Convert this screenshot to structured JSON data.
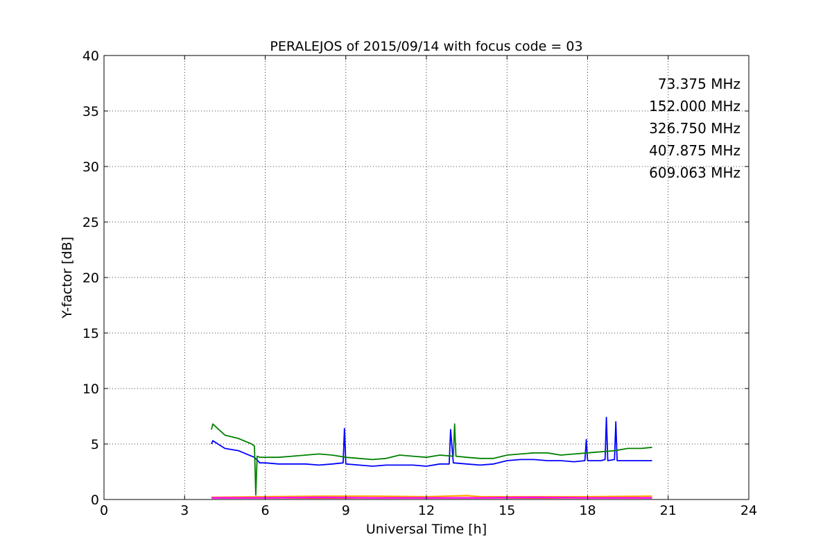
{
  "chart_data": {
    "type": "line",
    "title": "PERALEJOS of 2015/09/14 with focus code = 03",
    "xlabel": "Universal Time [h]",
    "ylabel": "Y-factor [dB]",
    "xlim": [
      0,
      24
    ],
    "ylim": [
      0,
      40
    ],
    "xticks": [
      0,
      3,
      6,
      9,
      12,
      15,
      18,
      21,
      24
    ],
    "yticks": [
      0,
      5,
      10,
      15,
      20,
      25,
      30,
      35,
      40
    ],
    "xtick_labels": [
      "0",
      "3",
      "6",
      "9",
      "12",
      "15",
      "18",
      "21",
      "24"
    ],
    "ytick_labels": [
      "0",
      "5",
      "10",
      "15",
      "20",
      "25",
      "30",
      "35",
      "40"
    ],
    "grid": true,
    "legend_position": "top-right",
    "series": [
      {
        "name": "73.375 MHz",
        "color": "#0000ff",
        "x": [
          4.0,
          4.05,
          4.5,
          5.0,
          5.3,
          5.6,
          5.8,
          6.0,
          6.5,
          7.0,
          7.5,
          8.0,
          8.5,
          8.9,
          8.95,
          9.0,
          9.5,
          10.0,
          10.5,
          11.0,
          11.5,
          12.0,
          12.5,
          12.85,
          12.9,
          13.0,
          13.5,
          14.0,
          14.5,
          15.0,
          15.5,
          16.0,
          16.5,
          17.0,
          17.5,
          17.9,
          17.95,
          18.0,
          18.5,
          18.65,
          18.7,
          18.75,
          19.0,
          19.05,
          19.1,
          19.5,
          20.0,
          20.4
        ],
        "y": [
          5.0,
          5.3,
          4.6,
          4.4,
          4.1,
          3.8,
          3.3,
          3.3,
          3.2,
          3.2,
          3.2,
          3.1,
          3.2,
          3.3,
          6.4,
          3.2,
          3.1,
          3.0,
          3.1,
          3.1,
          3.1,
          3.0,
          3.2,
          3.2,
          6.3,
          3.3,
          3.2,
          3.1,
          3.2,
          3.5,
          3.6,
          3.6,
          3.5,
          3.5,
          3.4,
          3.5,
          5.4,
          3.5,
          3.5,
          3.6,
          7.4,
          3.5,
          3.6,
          7.0,
          3.5,
          3.5,
          3.5,
          3.5
        ]
      },
      {
        "name": "152.000 MHz",
        "color": "#008000",
        "x": [
          4.0,
          4.05,
          4.5,
          5.0,
          5.5,
          5.6,
          5.65,
          5.7,
          5.8,
          6.0,
          6.5,
          7.0,
          7.5,
          8.0,
          8.5,
          9.0,
          9.5,
          10.0,
          10.5,
          11.0,
          11.5,
          12.0,
          12.5,
          13.0,
          13.05,
          13.1,
          13.5,
          14.0,
          14.5,
          15.0,
          15.5,
          16.0,
          16.5,
          17.0,
          17.5,
          18.0,
          18.5,
          19.0,
          19.5,
          20.0,
          20.4
        ],
        "y": [
          6.3,
          6.8,
          5.8,
          5.5,
          5.0,
          4.8,
          0.4,
          3.9,
          3.8,
          3.8,
          3.8,
          3.9,
          4.0,
          4.1,
          4.0,
          3.8,
          3.7,
          3.6,
          3.7,
          4.0,
          3.9,
          3.8,
          4.0,
          3.9,
          6.8,
          3.9,
          3.8,
          3.7,
          3.7,
          4.0,
          4.1,
          4.2,
          4.2,
          4.0,
          4.1,
          4.2,
          4.3,
          4.4,
          4.6,
          4.6,
          4.7
        ]
      },
      {
        "name": "326.750 MHz",
        "color": "#ff0000",
        "x": [
          4.0,
          8.0,
          12.0,
          16.0,
          20.4
        ],
        "y": [
          0.15,
          0.15,
          0.15,
          0.15,
          0.15
        ]
      },
      {
        "name": "407.875 MHz",
        "color": "#ffa500",
        "x": [
          4.0,
          6.0,
          8.0,
          10.0,
          12.0,
          13.5,
          14.0,
          16.0,
          18.0,
          20.4
        ],
        "y": [
          0.2,
          0.25,
          0.3,
          0.3,
          0.25,
          0.35,
          0.25,
          0.25,
          0.25,
          0.3
        ]
      },
      {
        "name": "609.063 MHz",
        "color": "#ff00ff",
        "x": [
          4.0,
          6.0,
          8.0,
          10.0,
          12.0,
          14.0,
          16.0,
          18.0,
          20.4
        ],
        "y": [
          0.15,
          0.15,
          0.2,
          0.15,
          0.15,
          0.15,
          0.2,
          0.15,
          0.15
        ]
      }
    ]
  }
}
